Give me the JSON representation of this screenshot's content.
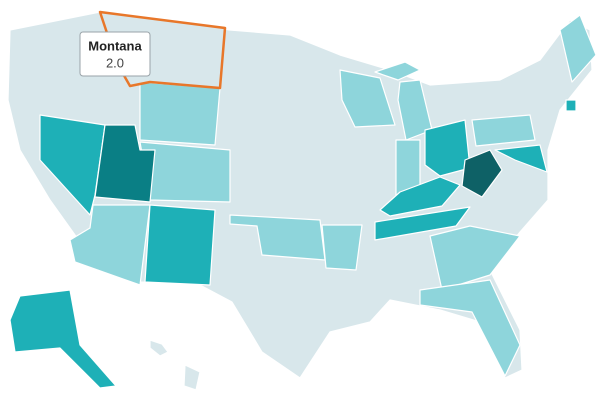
{
  "tooltip": {
    "title": "Montana",
    "value": "2.0"
  }
}
